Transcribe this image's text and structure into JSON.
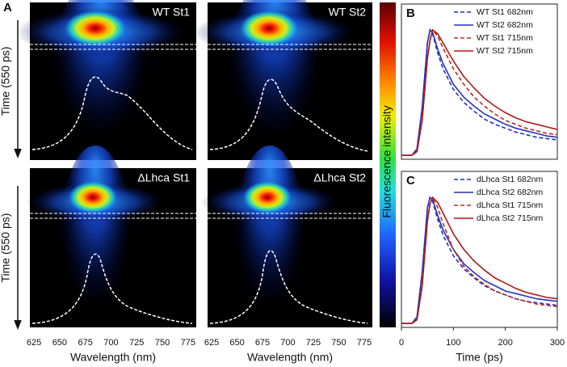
{
  "chart_data": [
    {
      "type": "heatmap",
      "panel": "A",
      "panels": [
        "WT St1",
        "WT St2",
        "ΔLhca St1",
        "ΔLhca St2"
      ],
      "xlabel": "Wavelength (nm)",
      "ylabel": "Time (550 ps)",
      "xlim": [
        621,
        783
      ],
      "xticks": [
        625,
        650,
        675,
        700,
        725,
        750,
        775
      ],
      "colorbar_label": "Fluorescence intensity"
    },
    {
      "type": "line",
      "panel": "B",
      "x": [
        0,
        20,
        30,
        40,
        50,
        55,
        60,
        70,
        80,
        100,
        120,
        140,
        160,
        180,
        200,
        220,
        240,
        260,
        280,
        300
      ],
      "xlim": [
        0,
        300
      ],
      "ylim": [
        0,
        1.2
      ],
      "series": [
        {
          "name": "WT St1 682nm",
          "color": "#2233bb",
          "dashed": true,
          "values": [
            0.03,
            0.03,
            0.08,
            0.4,
            0.9,
            1.0,
            0.97,
            0.82,
            0.7,
            0.54,
            0.44,
            0.37,
            0.31,
            0.27,
            0.24,
            0.21,
            0.19,
            0.17,
            0.16,
            0.15
          ]
        },
        {
          "name": "WT St2 682nm",
          "color": "#2233bb",
          "dashed": false,
          "values": [
            0.03,
            0.03,
            0.08,
            0.4,
            0.9,
            1.0,
            0.98,
            0.85,
            0.74,
            0.58,
            0.48,
            0.41,
            0.35,
            0.31,
            0.27,
            0.24,
            0.22,
            0.2,
            0.18,
            0.17
          ]
        },
        {
          "name": "WT St1 715nm",
          "color": "#c0281e",
          "dashed": true,
          "values": [
            0.03,
            0.03,
            0.06,
            0.3,
            0.78,
            0.92,
            1.0,
            0.95,
            0.86,
            0.7,
            0.58,
            0.48,
            0.41,
            0.35,
            0.3,
            0.27,
            0.24,
            0.22,
            0.2,
            0.19
          ]
        },
        {
          "name": "WT St2 715nm",
          "color": "#b01818",
          "dashed": false,
          "values": [
            0.03,
            0.03,
            0.06,
            0.3,
            0.78,
            0.92,
            1.0,
            0.97,
            0.9,
            0.76,
            0.64,
            0.55,
            0.47,
            0.41,
            0.36,
            0.32,
            0.29,
            0.27,
            0.25,
            0.23
          ]
        }
      ]
    },
    {
      "type": "line",
      "panel": "C",
      "x": [
        0,
        20,
        30,
        40,
        50,
        55,
        60,
        70,
        80,
        100,
        120,
        140,
        160,
        180,
        200,
        220,
        240,
        260,
        280,
        300
      ],
      "xlim": [
        0,
        300
      ],
      "ylim": [
        0,
        1.2
      ],
      "xticks": [
        0,
        100,
        200,
        300
      ],
      "xlabel": "Time (ps)",
      "series": [
        {
          "name": "dLhca St1 682nm",
          "color": "#2233bb",
          "dashed": true,
          "values": [
            0.03,
            0.03,
            0.08,
            0.42,
            0.92,
            1.0,
            0.97,
            0.83,
            0.71,
            0.55,
            0.45,
            0.38,
            0.32,
            0.28,
            0.25,
            0.22,
            0.2,
            0.19,
            0.18,
            0.17
          ]
        },
        {
          "name": "dLhca St2 682nm",
          "color": "#2233bb",
          "dashed": false,
          "values": [
            0.03,
            0.03,
            0.08,
            0.42,
            0.92,
            1.0,
            0.98,
            0.86,
            0.75,
            0.6,
            0.49,
            0.42,
            0.36,
            0.32,
            0.28,
            0.26,
            0.24,
            0.22,
            0.21,
            0.2
          ]
        },
        {
          "name": "dLhca St1 715nm",
          "color": "#c0281e",
          "dashed": true,
          "values": [
            0.03,
            0.03,
            0.06,
            0.32,
            0.82,
            0.95,
            1.0,
            0.92,
            0.8,
            0.6,
            0.47,
            0.39,
            0.33,
            0.28,
            0.25,
            0.22,
            0.2,
            0.18,
            0.17,
            0.16
          ]
        },
        {
          "name": "dLhca St2 715nm",
          "color": "#b01818",
          "dashed": false,
          "values": [
            0.03,
            0.03,
            0.06,
            0.32,
            0.82,
            0.95,
            1.0,
            0.96,
            0.88,
            0.72,
            0.6,
            0.51,
            0.44,
            0.38,
            0.34,
            0.3,
            0.27,
            0.25,
            0.23,
            0.22
          ]
        }
      ]
    }
  ]
}
